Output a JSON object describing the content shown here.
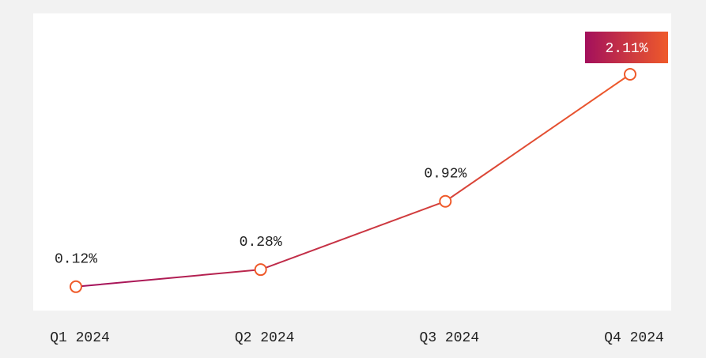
{
  "chart_data": {
    "type": "line",
    "categories": [
      "Q1 2024",
      "Q2 2024",
      "Q3 2024",
      "Q4 2024"
    ],
    "values": [
      0.12,
      0.28,
      0.92,
      2.11
    ],
    "value_labels": [
      "0.12%",
      "0.28%",
      "0.92%",
      "2.11%"
    ],
    "colors": [
      "#a3105c",
      "#ef5a2a"
    ]
  }
}
